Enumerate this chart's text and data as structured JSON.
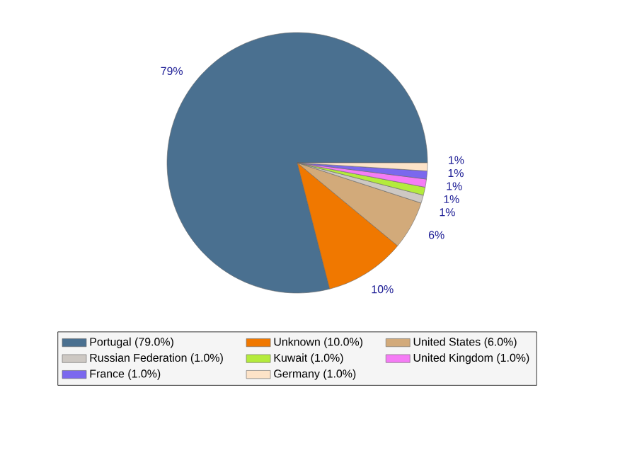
{
  "chart_data": {
    "type": "pie",
    "categories": [
      "Portugal (79.0%)",
      "Unknown (10.0%)",
      "United States (6.0%)",
      "Russian Federation (1.0%)",
      "Kuwait (1.0%)",
      "United Kingdom (1.0%)",
      "France (1.0%)",
      "Germany (1.0%)"
    ],
    "values": [
      79,
      10,
      6,
      1,
      1,
      1,
      1,
      1
    ],
    "colors": [
      "#4a7090",
      "#f07800",
      "#d2aa7a",
      "#cdc8c3",
      "#b4eb3c",
      "#f57cf5",
      "#7b68ee",
      "#fde3c8"
    ],
    "value_labels": [
      "79%",
      "10%",
      "6%",
      "1%",
      "1%",
      "1%",
      "1%",
      "1%"
    ],
    "legend": "bottom"
  }
}
